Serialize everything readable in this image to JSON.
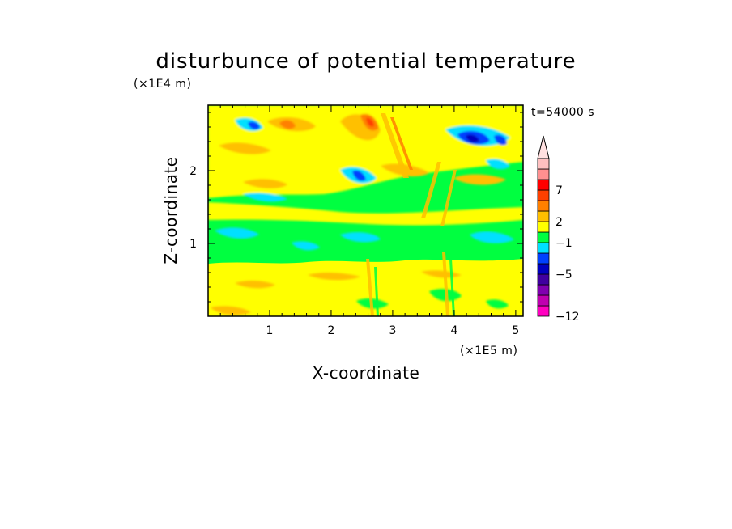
{
  "chart_data": {
    "type": "heatmap",
    "title": "disturbunce of potential temperature",
    "xlabel": "X-coordinate",
    "ylabel": "Z-coordinate",
    "x_unit": "(×1E5 m)",
    "y_unit": "(×1E4 m)",
    "time_label": "t=54000 s",
    "xlim": [
      0,
      5.12
    ],
    "ylim": [
      0,
      2.9
    ],
    "x_ticks": [
      1,
      2,
      3,
      4,
      5
    ],
    "x_tick_labels": [
      "1",
      "2",
      "3",
      "4",
      "5"
    ],
    "y_ticks": [
      1,
      2
    ],
    "y_tick_labels": [
      "1",
      "2"
    ],
    "grid": false,
    "colorbar": {
      "levels_colors": [
        "#ff00c0",
        "#c000b0",
        "#8000b0",
        "#4000a0",
        "#0000c0",
        "#0040ff",
        "#00e0ff",
        "#00ff40",
        "#ffff00",
        "#ffc000",
        "#ff8000",
        "#ff4000",
        "#ff0000",
        "#ff9090",
        "#ffc0c0"
      ],
      "labels": [
        {
          "text": "−12",
          "value": -12
        },
        {
          "text": "−5",
          "value": -5
        },
        {
          "text": "−1",
          "value": -1
        },
        {
          "text": "2",
          "value": 2
        },
        {
          "text": "7",
          "value": 7
        }
      ],
      "extend": "max"
    },
    "regions": [
      {
        "xmin": 0.0,
        "xmax": 5.12,
        "zmin": 0.0,
        "zmax": 0.75,
        "level": 2,
        "note": "mostly positive (yellow) low layer"
      },
      {
        "xmin": 0.0,
        "xmax": 5.12,
        "zmin": 0.75,
        "zmax": 1.45,
        "level": -1,
        "note": "near-zero (green) middle layer with light-blue patches"
      },
      {
        "xmin": 0.0,
        "xmax": 5.12,
        "zmin": 1.45,
        "zmax": 2.9,
        "level": 2,
        "note": "wavy upper layer, alternating positive and negative"
      }
    ],
    "extrema": [
      {
        "x": 2.65,
        "z": 2.65,
        "level": 7
      },
      {
        "x": 1.3,
        "z": 2.6,
        "level": 7
      },
      {
        "x": 0.75,
        "z": 2.65,
        "level": -5
      },
      {
        "x": 2.45,
        "z": 1.9,
        "level": -5
      },
      {
        "x": 4.3,
        "z": 2.45,
        "level": -5
      },
      {
        "x": 4.75,
        "z": 2.55,
        "level": -5
      }
    ]
  }
}
